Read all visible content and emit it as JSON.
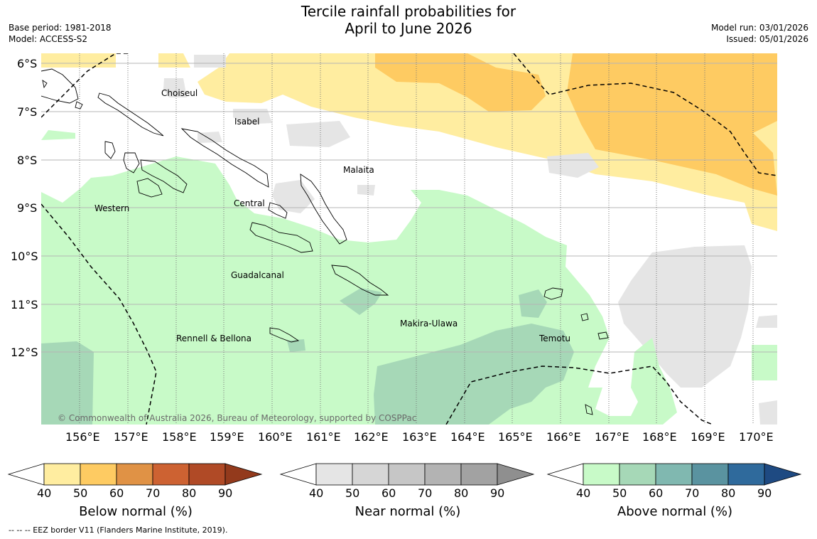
{
  "header": {
    "title_line1": "Tercile rainfall probabilities for",
    "title_line2": "April to June 2026",
    "base_period": "Base period: 1981-2018",
    "model": "Model: ACCESS-S2",
    "model_run": "Model run: 03/01/2026",
    "issued": "Issued: 05/01/2026"
  },
  "map": {
    "lat_labels": [
      "6°S",
      "7°S",
      "8°S",
      "9°S",
      "10°S",
      "11°S",
      "12°S"
    ],
    "lon_labels": [
      "156°E",
      "157°E",
      "158°E",
      "159°E",
      "160°E",
      "161°E",
      "162°E",
      "163°E",
      "164°E",
      "165°E",
      "166°E",
      "167°E",
      "168°E",
      "169°E",
      "170°E"
    ],
    "regions": [
      "Choiseul",
      "Isabel",
      "Malaita",
      "Western",
      "Central",
      "Guadalcanal",
      "Makira-Ulawa",
      "Rennell & Bellona",
      "Temotu"
    ],
    "copyright": "© Commonwealth of Australia 2026, Bureau of Meteorology, supported by COSPPac"
  },
  "legends": [
    {
      "label": "Below normal (%)",
      "ticks": [
        "40",
        "50",
        "60",
        "70",
        "80",
        "90"
      ],
      "colors": [
        "#ffeda0",
        "#fecb62",
        "#e09245",
        "#cd6232",
        "#b04a26",
        "#933a1c"
      ]
    },
    {
      "label": "Near normal (%)",
      "ticks": [
        "40",
        "50",
        "60",
        "70",
        "80",
        "90"
      ],
      "colors": [
        "#e5e5e5",
        "#d6d6d6",
        "#c6c6c6",
        "#b3b3b3",
        "#a2a2a2",
        "#8f8f8f"
      ]
    },
    {
      "label": "Above normal (%)",
      "ticks": [
        "40",
        "50",
        "60",
        "70",
        "80",
        "90"
      ],
      "colors": [
        "#c8fac8",
        "#a6d8b7",
        "#80b8b0",
        "#5a93a0",
        "#2f6a9c",
        "#1e4a82"
      ]
    }
  ],
  "footer": "--  --  -- EEZ border V11 (Flanders Marine Institute, 2019)."
}
